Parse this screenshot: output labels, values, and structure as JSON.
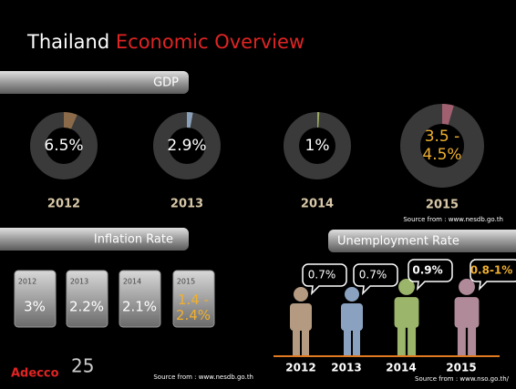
{
  "title": {
    "lead": "Thailand",
    "rest": "Economic Overview"
  },
  "gdp": {
    "heading": "GDP",
    "items": [
      {
        "year": "2012",
        "value": 6.5,
        "label": [
          "6.5%"
        ],
        "color": "#8b6a4a"
      },
      {
        "year": "2013",
        "value": 2.9,
        "label": [
          "2.9%"
        ],
        "color": "#8aa0b8"
      },
      {
        "year": "2014",
        "value": 1,
        "label": [
          "1%"
        ],
        "color": "#9aaa60"
      },
      {
        "year": "2015",
        "low": 3.5,
        "high": 4.5,
        "label": [
          "3.5 -",
          "4.5%"
        ],
        "color": "#a06070"
      }
    ],
    "source": "Source from : www.nesdb.go.th"
  },
  "inflation": {
    "heading": "Inflation Rate",
    "items": [
      {
        "year": "2012",
        "label": [
          "3%"
        ]
      },
      {
        "year": "2013",
        "label": [
          "2.2%"
        ]
      },
      {
        "year": "2014",
        "label": [
          "2.1%"
        ]
      },
      {
        "year": "2015",
        "label": [
          "1.4 -",
          "2.4%"
        ]
      }
    ],
    "source": "Source from : www.nesdb.go.th"
  },
  "unemployment": {
    "heading": "Unemployment Rate",
    "items": [
      {
        "year": "2012",
        "label": "0.7%",
        "color": "#b39a80"
      },
      {
        "year": "2013",
        "label": "0.7%",
        "color": "#8aa2c0"
      },
      {
        "year": "2014",
        "label": "0.9%",
        "color": "#9bb56a"
      },
      {
        "year": "2015",
        "label": "0.8-1%",
        "color": "#b08a98"
      }
    ],
    "source": "Source from : www.nso.go.th/"
  },
  "logo": "Adecco",
  "anniversary": "25"
}
